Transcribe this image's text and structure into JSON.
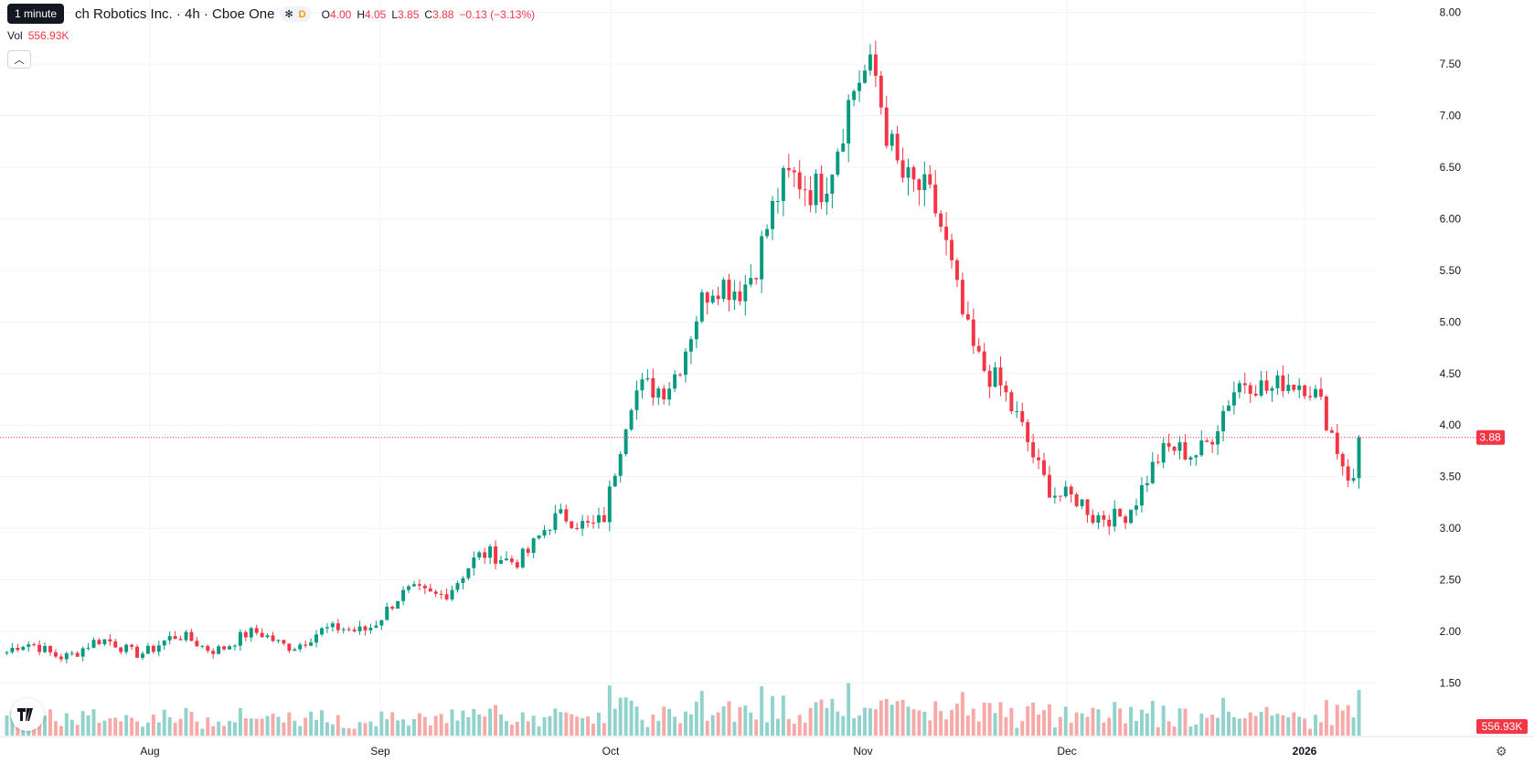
{
  "header": {
    "symbol_title": "ch Robotics Inc. · 4h · Cboe One",
    "tooltip": "1 minute",
    "pill_icon": "asterisk-icon",
    "pill_label": "D",
    "ohlc": {
      "o_label": "O",
      "o": "4.00",
      "h_label": "H",
      "h": "4.05",
      "l_label": "L",
      "l": "3.85",
      "c_label": "C",
      "c": "3.88",
      "change": "−0.13 (−3.13%)"
    },
    "vol_label": "Vol",
    "vol_value": "556.93K",
    "collapse_icon": "chevron-up-icon"
  },
  "colors": {
    "up": "#089981",
    "down": "#f23645",
    "up_volume": "#92d2cc",
    "down_volume": "#f7a9a7",
    "grid": "#f0f3fa",
    "price_line": "#f23645"
  },
  "chart_data": {
    "type": "candlestick",
    "timeframe": "4h",
    "y_ticks": [
      "8.00",
      "7.50",
      "7.00",
      "6.50",
      "6.00",
      "5.50",
      "5.00",
      "4.50",
      "4.00",
      "3.50",
      "3.00",
      "2.50",
      "2.00",
      "1.50"
    ],
    "ylim": [
      1.3,
      8.05
    ],
    "x_ticks": [
      "Aug",
      "Sep",
      "Oct",
      "Nov",
      "Dec",
      "2026"
    ],
    "last_price": "3.88",
    "last_volume": "556.93K",
    "key_closes": [
      {
        "month": "Aug",
        "close": 1.8
      },
      {
        "month": "Sep",
        "close": 3.1
      },
      {
        "month": "Oct",
        "close": 4.1
      },
      {
        "month": "Oct-peak",
        "close": 7.3
      },
      {
        "month": "Nov",
        "close": 4.0
      },
      {
        "month": "Nov-low",
        "close": 3.0
      },
      {
        "month": "Dec",
        "close": 4.6
      },
      {
        "month": "2026",
        "close": 3.5
      },
      {
        "month": "last",
        "close": 3.88
      }
    ],
    "grid": true,
    "watermark_icon": "tradingview-logo-icon"
  },
  "footer": {
    "settings_icon": "gear-icon"
  }
}
